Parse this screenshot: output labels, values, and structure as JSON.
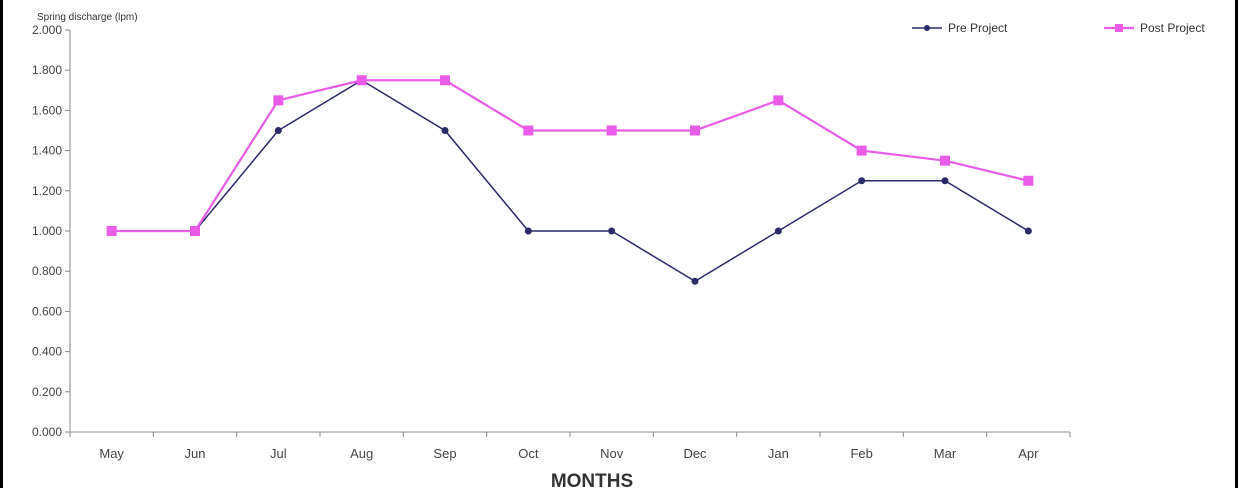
{
  "chart_data": {
    "type": "line",
    "title": "",
    "ylabel": "Spring discharge (lpm)",
    "xlabel": "MONTHS",
    "ylim": [
      0,
      2
    ],
    "yticks": [
      "0.000",
      "0.200",
      "0.400",
      "0.600",
      "0.800",
      "1.000",
      "1.200",
      "1.400",
      "1.600",
      "1.800",
      "2.000"
    ],
    "grid": false,
    "legend_position": "top-right",
    "categories": [
      "May",
      "Jun",
      "Jul",
      "Aug",
      "Sep",
      "Oct",
      "Nov",
      "Dec",
      "Jan",
      "Feb",
      "Mar",
      "Apr"
    ],
    "series": [
      {
        "name": "Pre Project",
        "color": "#2b2b6b",
        "marker": "circle",
        "values": [
          1.0,
          1.0,
          1.5,
          1.75,
          1.5,
          1.0,
          1.0,
          0.75,
          1.0,
          1.25,
          1.25,
          1.0
        ]
      },
      {
        "name": "Post Project",
        "color": "#e85ce8",
        "marker": "square",
        "values": [
          1.0,
          1.0,
          1.65,
          1.75,
          1.75,
          1.5,
          1.5,
          1.5,
          1.65,
          1.4,
          1.35,
          1.25
        ]
      }
    ]
  }
}
